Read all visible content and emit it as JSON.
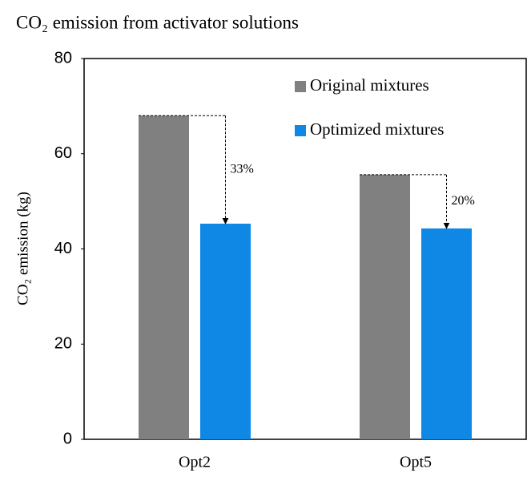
{
  "chart_data": {
    "type": "bar",
    "title": "CO₂ emission from activator solutions",
    "y_label": "CO₂ emission (kg)",
    "categories": [
      "Opt2",
      "Opt5"
    ],
    "series": [
      {
        "name": "Original mixtures",
        "color": "#808080",
        "values": [
          68,
          55.6
        ]
      },
      {
        "name": "Optimized mixtures",
        "color": "#0f87e5",
        "values": [
          45.3,
          44.3
        ]
      }
    ],
    "annotations": [
      "33%",
      "20%"
    ],
    "ylim": [
      0,
      80
    ],
    "yticks": [
      0,
      20,
      40,
      60,
      80
    ],
    "grid": false,
    "legend": "upper right"
  }
}
